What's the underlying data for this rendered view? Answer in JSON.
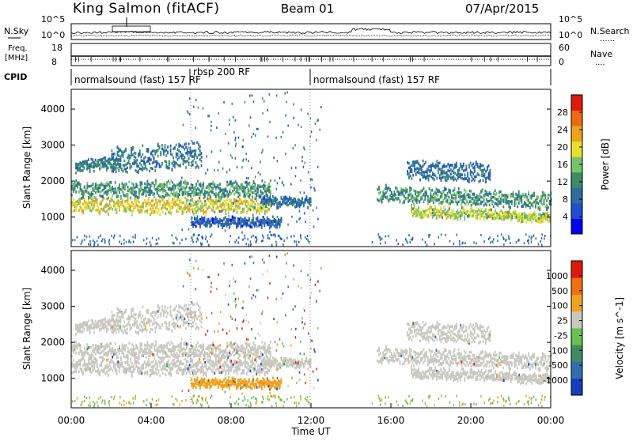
{
  "header": {
    "station": "King Salmon (fitACF)",
    "beam": "Beam 01",
    "date": "07/Apr/2015"
  },
  "noise_panel": {
    "left_label": "N.Sky",
    "right_label": "N.Search",
    "right_legend": "......",
    "left_ticks": [
      "10^5",
      "10^0"
    ],
    "right_ticks": [
      "10^5",
      "10^0"
    ]
  },
  "freq_panel": {
    "left_label_1": "Freq.",
    "left_label_2": "[MHz]",
    "right_label": "Nave",
    "right_legend": "....",
    "left_ticks": [
      "18",
      "8"
    ],
    "right_ticks": [
      "60",
      "0"
    ]
  },
  "cpid_panel": {
    "label": "CPID",
    "segments": [
      "normalsound (fast) 157 RF",
      "rbsp 200 RF",
      "normalsound (fast) 157 RF"
    ]
  },
  "chart_data": [
    {
      "type": "heatmap",
      "name": "power",
      "ylabel": "Slant Range [km]",
      "xlabel": "Time UT",
      "xlim": [
        "00:00",
        "24:00"
      ],
      "ylim": [
        180,
        4550
      ],
      "yticks": [
        "1000",
        "2000",
        "3000",
        "4000"
      ],
      "colorbar": {
        "label": "Power [dB]",
        "ticks": [
          "28",
          "24",
          "20",
          "16",
          "12",
          "8",
          "4"
        ],
        "colors": [
          "#0000ff",
          "#1f4fd0",
          "#2a6e9e",
          "#3d8b62",
          "#77c36b",
          "#e6e02a",
          "#f0a21c",
          "#f06a10",
          "#e01a08"
        ]
      },
      "bands": [
        {
          "start": 0.0,
          "end": 10.0,
          "base": 1350,
          "thick": 380,
          "level": 20
        },
        {
          "start": 0.0,
          "end": 10.0,
          "base": 1800,
          "thick": 400,
          "level": 12
        },
        {
          "start": 0.2,
          "end": 2.5,
          "base": 2450,
          "thick": 300,
          "level": 10
        },
        {
          "start": 2.0,
          "end": 6.5,
          "base": 2600,
          "thick": 700,
          "level": 9
        },
        {
          "start": 6.0,
          "end": 10.5,
          "base": 900,
          "thick": 220,
          "level": 6
        },
        {
          "start": 9.5,
          "end": 12.0,
          "base": 1450,
          "thick": 220,
          "level": 8
        },
        {
          "start": 15.3,
          "end": 24.0,
          "base": 1700,
          "thick": 400,
          "level": 12
        },
        {
          "start": 16.8,
          "end": 21.0,
          "base": 2400,
          "thick": 500,
          "level": 8
        },
        {
          "start": 17.0,
          "end": 24.0,
          "base": 1250,
          "thick": 250,
          "level": 18
        }
      ]
    },
    {
      "type": "heatmap",
      "name": "velocity",
      "ylabel": "Slant Range [km]",
      "xlabel": "Time UT",
      "xlim": [
        "00:00",
        "24:00"
      ],
      "ylim": [
        180,
        4550
      ],
      "yticks": [
        "1000",
        "2000",
        "3000",
        "4000"
      ],
      "xticks": [
        "00:00",
        "04:00",
        "08:00",
        "12:00",
        "16:00",
        "20:00",
        "00:00"
      ],
      "colorbar": {
        "label": "Velocity [m s^-1]",
        "ticks": [
          "1000",
          "500",
          "100",
          "25",
          "-25",
          "-100",
          "-500",
          "-1000"
        ],
        "colors": [
          "#1040c0",
          "#2f6fb0",
          "#3d8b62",
          "#66c24a",
          "#c8c8c0",
          "#f0a21c",
          "#f07010",
          "#e01a08"
        ]
      }
    }
  ]
}
